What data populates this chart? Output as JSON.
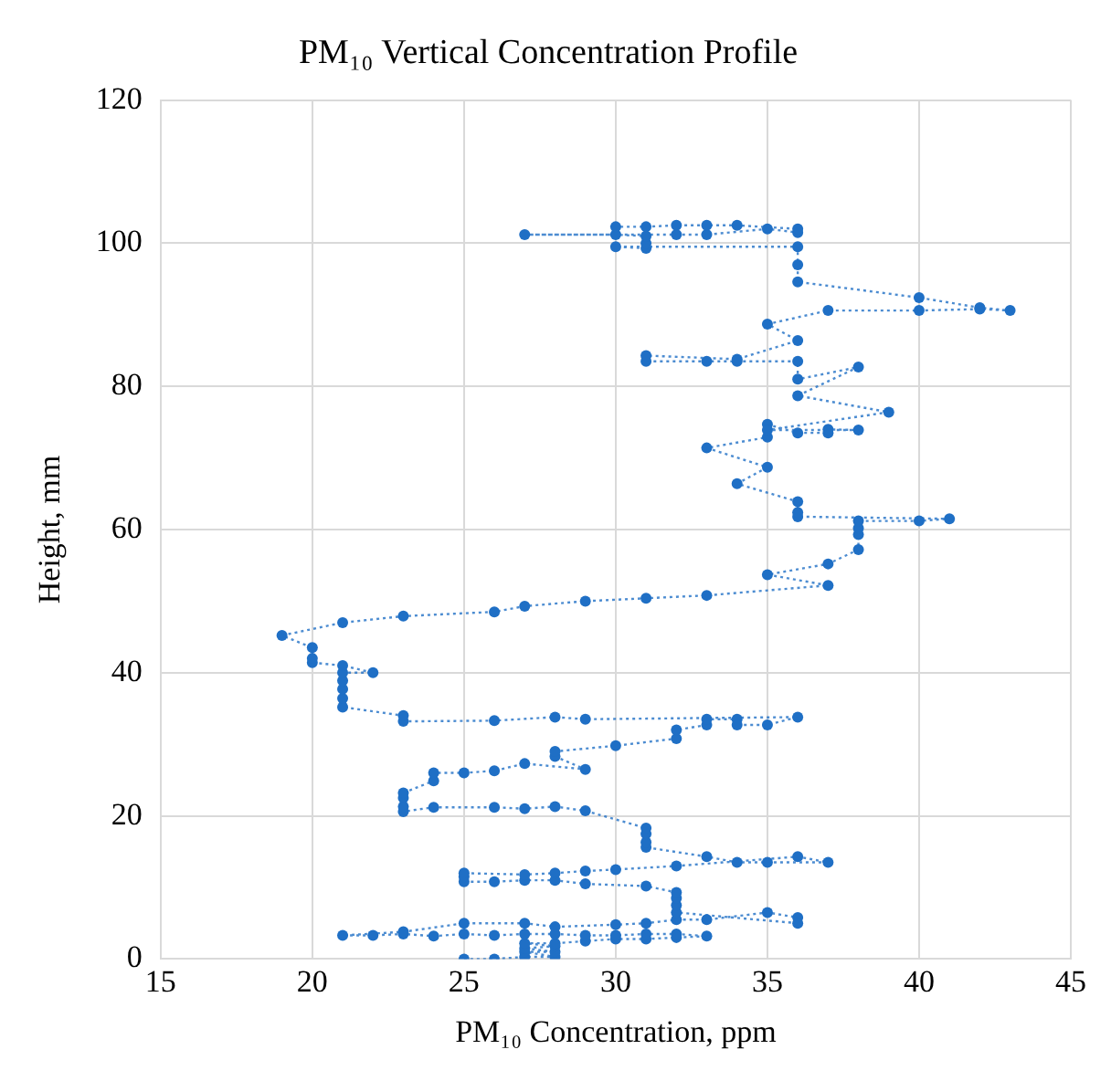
{
  "chart_data": {
    "type": "line",
    "title": "PM₁₀ Vertical Concentration Profile",
    "xlabel": "PM₁₀ Concentration, ppm",
    "ylabel": "Height, mm",
    "xlim": [
      15,
      45
    ],
    "xticks": [
      15,
      20,
      25,
      30,
      35,
      40,
      45
    ],
    "ylim": [
      0,
      120
    ],
    "yticks": [
      0,
      20,
      40,
      60,
      80,
      100,
      120
    ],
    "grid": true,
    "legend": false,
    "marker": "circle",
    "line_style": "dotted",
    "series": [
      {
        "color": "#1f6fc5",
        "x": [
          25,
          26,
          27,
          28,
          27,
          28,
          27,
          28,
          27,
          28,
          29,
          30,
          31,
          32,
          33,
          32,
          31,
          30,
          29,
          28,
          27,
          26,
          25,
          24,
          23,
          22,
          21,
          23,
          25,
          27,
          28,
          30,
          31,
          32,
          33,
          35,
          36,
          36,
          32,
          32,
          32,
          32,
          31,
          29,
          28,
          27,
          26,
          25,
          25,
          25,
          27,
          28,
          29,
          30,
          32,
          36,
          37,
          35,
          34,
          33,
          31,
          31,
          31,
          31,
          29,
          28,
          27,
          26,
          24,
          23,
          23,
          23,
          23,
          24,
          24,
          25,
          26,
          27,
          29,
          28,
          28,
          30,
          32,
          32,
          33,
          33,
          34,
          34,
          35,
          36,
          29,
          28,
          26,
          23,
          23,
          21,
          21,
          21,
          21,
          21,
          22,
          21,
          20,
          20,
          20,
          19,
          21,
          23,
          26,
          27,
          29,
          31,
          33,
          37,
          35,
          37,
          38,
          38,
          38,
          38,
          40,
          41,
          36,
          36,
          36,
          34,
          35,
          33,
          35,
          35,
          36,
          37,
          37,
          38,
          35,
          39,
          36,
          38,
          36,
          36,
          34,
          33,
          31,
          31,
          34,
          36,
          35,
          37,
          40,
          42,
          43,
          42,
          40,
          36,
          36,
          36,
          30,
          31,
          31,
          31,
          30,
          27,
          32,
          33,
          35,
          36,
          36,
          34,
          33,
          32,
          31,
          30
        ],
        "values": [
          0,
          0,
          0.3,
          0.3,
          1,
          1,
          1.5,
          1.8,
          2.2,
          2.2,
          2.5,
          2.8,
          2.8,
          3,
          3.2,
          3.5,
          3.5,
          3.3,
          3.3,
          3.5,
          3.5,
          3.3,
          3.5,
          3.2,
          3.5,
          3.3,
          3.3,
          3.8,
          5,
          5,
          4.5,
          4.8,
          5,
          5.5,
          5.5,
          6.5,
          5.8,
          5,
          6.5,
          7.5,
          8.5,
          9.3,
          10.2,
          10.5,
          11,
          11,
          10.8,
          10.8,
          11.5,
          12,
          11.8,
          12,
          12.3,
          12.5,
          13,
          14.3,
          13.5,
          13.5,
          13.5,
          14.3,
          15.6,
          16.3,
          17.5,
          18.3,
          20.7,
          21.3,
          21,
          21.2,
          21.2,
          20.6,
          21.3,
          22.5,
          23.2,
          24.9,
          26,
          26,
          26.3,
          27.3,
          26.5,
          28.3,
          29,
          29.8,
          30.8,
          32,
          32.7,
          33.5,
          33.5,
          32.7,
          32.7,
          33.8,
          33.5,
          33.8,
          33.3,
          33.2,
          34,
          35.2,
          36.4,
          37.7,
          38.9,
          40,
          40,
          41,
          41.4,
          42,
          43.5,
          45.2,
          47,
          47.9,
          48.5,
          49.3,
          50,
          50.4,
          50.8,
          52.2,
          53.7,
          55.2,
          57.2,
          59.3,
          60.2,
          61.2,
          61.2,
          61.5,
          61.8,
          62.4,
          63.9,
          66.4,
          68.7,
          71.4,
          72.9,
          74.7,
          73.5,
          73.5,
          74,
          73.9,
          73.9,
          76.4,
          78.7,
          82.7,
          81,
          83.5,
          83.5,
          83.5,
          83.5,
          84.3,
          83.8,
          86.4,
          88.7,
          90.6,
          90.6,
          90.8,
          90.6,
          91,
          92.4,
          94.6,
          97,
          99.5,
          99.5,
          99.3,
          100,
          101,
          101.2,
          101.2,
          101.2,
          101.2,
          102,
          101.5,
          102,
          102.5,
          102.5,
          102.5,
          102.3,
          102.3
        ]
      }
    ]
  }
}
